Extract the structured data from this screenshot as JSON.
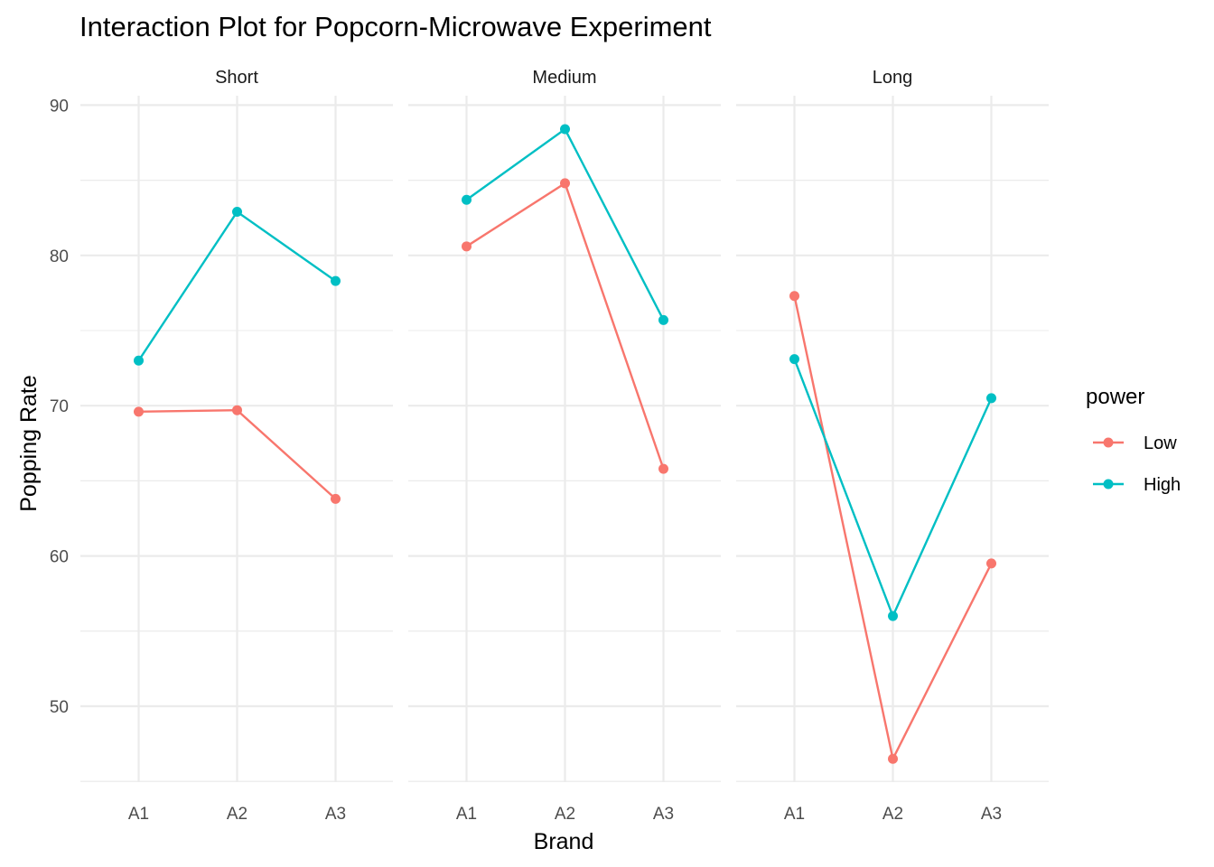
{
  "chart_data": {
    "type": "line",
    "title": "Interaction Plot for Popcorn-Microwave Experiment",
    "xlabel": "Brand",
    "ylabel": "Popping Rate",
    "categories": [
      "A1",
      "A2",
      "A3"
    ],
    "ylim": [
      45,
      90
    ],
    "y_ticks": [
      "50",
      "60",
      "70",
      "80",
      "90"
    ],
    "grid": true,
    "legend": {
      "title": "power",
      "position": "right",
      "entries": [
        "Low",
        "High"
      ]
    },
    "series_colors": {
      "Low": "#F8766D",
      "High": "#00BFC4"
    },
    "panels": [
      {
        "label": "Short",
        "series": [
          {
            "name": "Low",
            "values": [
              69.6,
              69.7,
              63.8
            ]
          },
          {
            "name": "High",
            "values": [
              73.0,
              82.9,
              78.3
            ]
          }
        ]
      },
      {
        "label": "Medium",
        "series": [
          {
            "name": "Low",
            "values": [
              80.6,
              84.8,
              65.8
            ]
          },
          {
            "name": "High",
            "values": [
              83.7,
              88.4,
              75.7
            ]
          }
        ]
      },
      {
        "label": "Long",
        "series": [
          {
            "name": "Low",
            "values": [
              77.3,
              46.5,
              59.5
            ]
          },
          {
            "name": "High",
            "values": [
              73.1,
              56.0,
              70.5
            ]
          }
        ]
      }
    ]
  }
}
